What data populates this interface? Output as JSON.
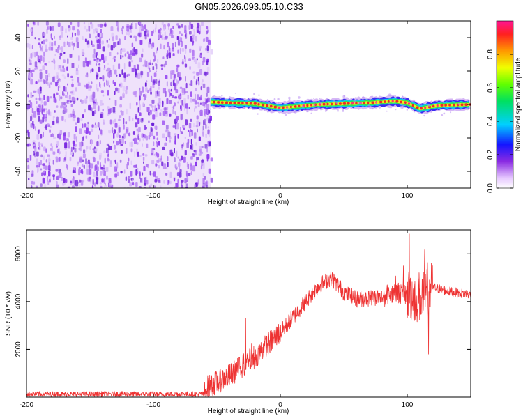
{
  "title": "GN05.2026.093.05.10.C33",
  "chart_data": [
    {
      "type": "heatmap",
      "name": "spectrogram",
      "xlabel": "Height of straight line (km)",
      "ylabel": "Frequency (Hz)",
      "xlim": [
        -200,
        150
      ],
      "ylim": [
        -50,
        50
      ],
      "xticks": [
        -200,
        -100,
        0,
        100
      ],
      "yticks": [
        -40,
        -20,
        0,
        20,
        40
      ],
      "noise_region_x": [
        -200,
        -55
      ],
      "signal_start_x": -55,
      "signal_track": [
        {
          "x": -55,
          "y": 1.5
        },
        {
          "x": -40,
          "y": 1.0
        },
        {
          "x": -20,
          "y": 0.5
        },
        {
          "x": 0,
          "y": -2.0
        },
        {
          "x": 15,
          "y": -1.0
        },
        {
          "x": 30,
          "y": 0.0
        },
        {
          "x": 50,
          "y": 0.5
        },
        {
          "x": 70,
          "y": 1.0
        },
        {
          "x": 90,
          "y": 2.0
        },
        {
          "x": 100,
          "y": 1.0
        },
        {
          "x": 110,
          "y": -2.5
        },
        {
          "x": 125,
          "y": -0.5
        },
        {
          "x": 150,
          "y": 0.0
        }
      ],
      "colorbar": {
        "label": "Normalized spectral amplitude",
        "range": [
          0.0,
          1.0
        ],
        "ticks": [
          "0.0",
          "0.2",
          "0.4",
          "0.6",
          "0.8"
        ]
      }
    },
    {
      "type": "line",
      "name": "snr",
      "xlabel": "Height of straight line (km)",
      "ylabel": "SNR (10 * v/v)",
      "xlim": [
        -200,
        150
      ],
      "ylim": [
        0,
        7000
      ],
      "xticks": [
        -200,
        -100,
        0,
        100
      ],
      "yticks": [
        2000,
        4000,
        6000
      ],
      "color": "#ee3333",
      "envelope": [
        {
          "x": -200,
          "y": 130
        },
        {
          "x": -60,
          "y": 130
        },
        {
          "x": -58,
          "y": 400
        },
        {
          "x": -40,
          "y": 900
        },
        {
          "x": -20,
          "y": 1700
        },
        {
          "x": 0,
          "y": 2700
        },
        {
          "x": 20,
          "y": 4000
        },
        {
          "x": 30,
          "y": 4650
        },
        {
          "x": 40,
          "y": 5000
        },
        {
          "x": 50,
          "y": 4400
        },
        {
          "x": 60,
          "y": 4100
        },
        {
          "x": 80,
          "y": 4200
        },
        {
          "x": 90,
          "y": 4400
        },
        {
          "x": 100,
          "y": 4300
        },
        {
          "x": 110,
          "y": 4200
        },
        {
          "x": 120,
          "y": 4600
        },
        {
          "x": 135,
          "y": 4400
        },
        {
          "x": 150,
          "y": 4300
        }
      ]
    }
  ]
}
